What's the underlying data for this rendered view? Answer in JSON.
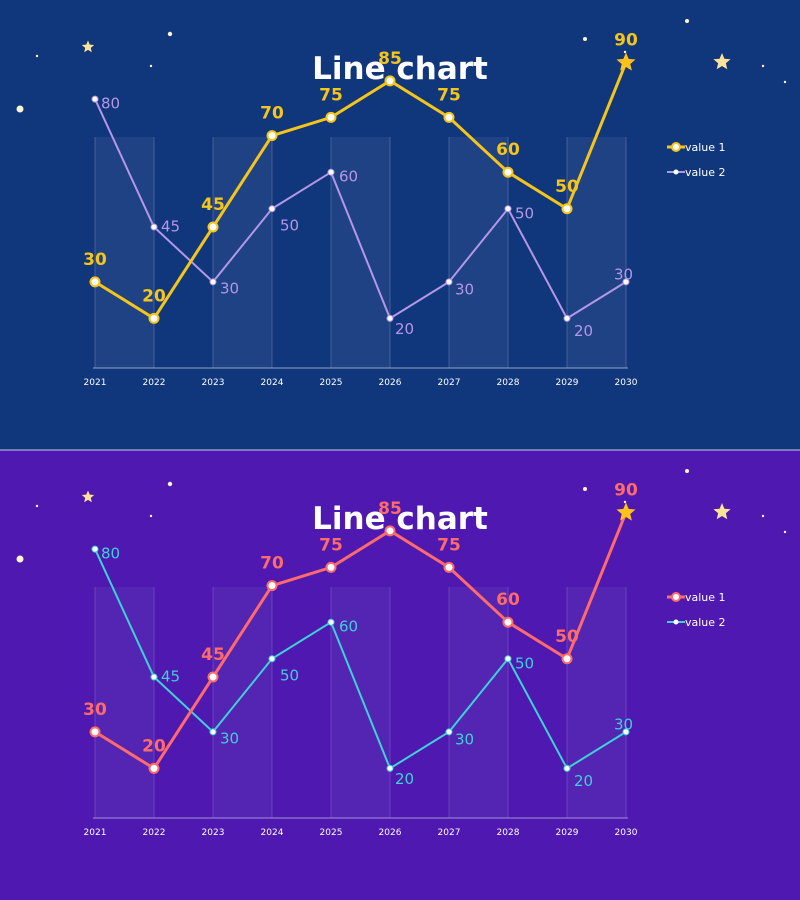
{
  "panels": [
    {
      "theme": "dark-blue",
      "colors": {
        "background": "#10367c",
        "band": "#2b4d8d",
        "grid": "#4c6aa0",
        "axis": "#8ea3c8",
        "series1": "#f5c518",
        "series2": "#b497e7",
        "title": "#ffffff",
        "ticks": "#ffffff"
      },
      "chart_data": {
        "type": "line",
        "title": "Line chart",
        "xlabel": "",
        "ylabel": "",
        "ylim": [
          0,
          100
        ],
        "x": [
          "2021",
          "2022",
          "2023",
          "2024",
          "2025",
          "2026",
          "2027",
          "2028",
          "2029",
          "2030"
        ],
        "series": [
          {
            "name": "value 1",
            "values": [
              30,
              20,
              45,
              70,
              75,
              85,
              75,
              60,
              50,
              90
            ]
          },
          {
            "name": "value 2",
            "values": [
              80,
              45,
              30,
              50,
              60,
              20,
              30,
              50,
              20,
              30
            ]
          }
        ],
        "highlight": {
          "series": "value 1",
          "category": "2030",
          "marker": "star"
        },
        "legend": "right"
      }
    },
    {
      "theme": "purple",
      "colors": {
        "background": "#4f18b1",
        "band": "#5a2fb5",
        "grid": "#6e4cc1",
        "axis": "#a08fd8",
        "series1": "#ff6b6b",
        "series2": "#3fd0d8",
        "title": "#ffffff",
        "ticks": "#ffffff"
      },
      "chart_data": {
        "type": "line",
        "title": "Line chart",
        "xlabel": "",
        "ylabel": "",
        "ylim": [
          0,
          100
        ],
        "x": [
          "2021",
          "2022",
          "2023",
          "2024",
          "2025",
          "2026",
          "2027",
          "2028",
          "2029",
          "2030"
        ],
        "series": [
          {
            "name": "value 1",
            "values": [
              30,
              20,
              45,
              70,
              75,
              85,
              75,
              60,
              50,
              90
            ]
          },
          {
            "name": "value 2",
            "values": [
              80,
              45,
              30,
              50,
              60,
              20,
              30,
              50,
              20,
              30
            ]
          }
        ],
        "highlight": {
          "series": "value 1",
          "category": "2030",
          "marker": "star"
        },
        "legend": "right"
      }
    }
  ],
  "decor": {
    "star_color": "#ffe29a",
    "dot_color": "#fff5d0",
    "highlight_star_color": "#ffc21a"
  }
}
